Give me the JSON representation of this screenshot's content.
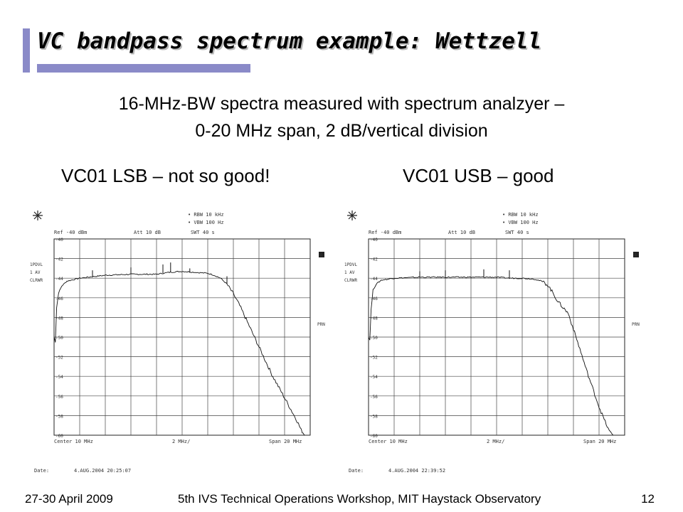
{
  "slide": {
    "title": "VC bandpass spectrum example: Wettzell",
    "subtitle_line1": "16-MHz-BW spectra measured with spectrum analzyer –",
    "subtitle_line2": "0-20 MHz span, 2 dB/vertical division",
    "footer_left": "27-30 April 2009",
    "footer_center": "5th IVS Technical Operations Workshop, MIT Haystack Observatory",
    "footer_page": "12",
    "accent_color": "#8a8ac8"
  },
  "chart_data": [
    {
      "type": "line",
      "title": "VC01 LSB – not so good!",
      "x_unit": "MHz",
      "y_unit": "dBm",
      "xlim": [
        0,
        20
      ],
      "ylim": [
        -60,
        -40
      ],
      "x_divisions": 10,
      "y_divisions": 10,
      "grid": true,
      "line_color": "#111111",
      "y_tick_labels": [
        "-40",
        "-42",
        "-44",
        "-46",
        "-48",
        "-50",
        "-52",
        "-54",
        "-56",
        "-58",
        "-60"
      ],
      "header": {
        "rbw": "RBW  10 kHz",
        "vbw": "VBW  100 Hz",
        "ref": "Ref -40 dBm",
        "att": "Att  10 dB",
        "swt": "SWT  40 s"
      },
      "side_labels": [
        "1PDVL",
        "1 AV",
        "CLRWR"
      ],
      "right_labels": [
        "A",
        "PRN"
      ],
      "bottom": {
        "center": "Center 10 MHz",
        "per_div": "2 MHz/",
        "span": "Span 20 MHz"
      },
      "date_label": "Date:",
      "date_value": "4.AUG.2004  20:25:07",
      "x": [
        0.0,
        0.1,
        0.2,
        0.35,
        0.6,
        1.0,
        2.0,
        4.0,
        6.0,
        8.0,
        9.0,
        10.0,
        11.0,
        12.0,
        12.5,
        13.0,
        13.5,
        14.0,
        14.5,
        15.0,
        15.5,
        16.0,
        16.5,
        17.0,
        17.5,
        18.0,
        18.5,
        19.0,
        19.3,
        19.6
      ],
      "y": [
        -50.0,
        -50.5,
        -47.0,
        -45.5,
        -44.8,
        -44.3,
        -44.0,
        -43.7,
        -43.6,
        -43.6,
        -43.4,
        -43.3,
        -43.4,
        -43.5,
        -43.7,
        -44.0,
        -44.6,
        -45.6,
        -46.8,
        -48.2,
        -49.6,
        -51.0,
        -52.4,
        -53.8,
        -55.0,
        -56.2,
        -57.4,
        -58.6,
        -59.5,
        -60.0
      ],
      "spikes": [
        {
          "x": 3.0,
          "y": -43.2
        },
        {
          "x": 6.0,
          "y": -42.9
        },
        {
          "x": 8.5,
          "y": -42.6
        },
        {
          "x": 9.1,
          "y": -42.4
        },
        {
          "x": 10.6,
          "y": -43.0
        },
        {
          "x": 13.5,
          "y": -43.8
        }
      ]
    },
    {
      "type": "line",
      "title": "VC01 USB – good",
      "x_unit": "MHz",
      "y_unit": "dBm",
      "xlim": [
        0,
        20
      ],
      "ylim": [
        -60,
        -40
      ],
      "x_divisions": 10,
      "y_divisions": 10,
      "grid": true,
      "line_color": "#111111",
      "y_tick_labels": [
        "-40",
        "-42",
        "-44",
        "-46",
        "-48",
        "-50",
        "-52",
        "-54",
        "-56",
        "-58",
        "-60"
      ],
      "header": {
        "rbw": "RBW  10 kHz",
        "vbw": "VBW  100 Hz",
        "ref": "Ref -40 dBm",
        "att": "Att  10 dB",
        "swt": "SWT  40 s"
      },
      "side_labels": [
        "1PDVL",
        "1 AV",
        "CLRWR"
      ],
      "right_labels": [
        "A",
        "PRN"
      ],
      "bottom": {
        "center": "Center 10 MHz",
        "per_div": "2 MHz/",
        "span": "Span 20 MHz"
      },
      "date_label": "Date:",
      "date_value": "4.AUG.2004  22:39:52",
      "x": [
        0.0,
        0.1,
        0.2,
        0.35,
        0.6,
        1.0,
        2.0,
        4.0,
        6.0,
        8.0,
        10.0,
        11.0,
        12.0,
        13.0,
        13.5,
        14.0,
        14.4,
        14.8,
        15.2,
        15.6,
        16.0,
        16.5,
        17.0,
        17.5,
        18.0,
        18.4,
        18.8,
        19.1
      ],
      "y": [
        -50.0,
        -50.3,
        -47.2,
        -45.2,
        -44.6,
        -44.2,
        -44.0,
        -43.9,
        -43.9,
        -43.9,
        -43.9,
        -44.0,
        -44.0,
        -44.1,
        -44.3,
        -44.7,
        -45.5,
        -46.4,
        -47.0,
        -47.6,
        -49.2,
        -51.2,
        -53.3,
        -55.2,
        -57.1,
        -58.4,
        -59.6,
        -60.0
      ],
      "spikes": [
        {
          "x": 4.0,
          "y": -43.3
        },
        {
          "x": 6.0,
          "y": -43.2
        },
        {
          "x": 9.0,
          "y": -43.1
        },
        {
          "x": 11.0,
          "y": -43.2
        }
      ]
    }
  ]
}
